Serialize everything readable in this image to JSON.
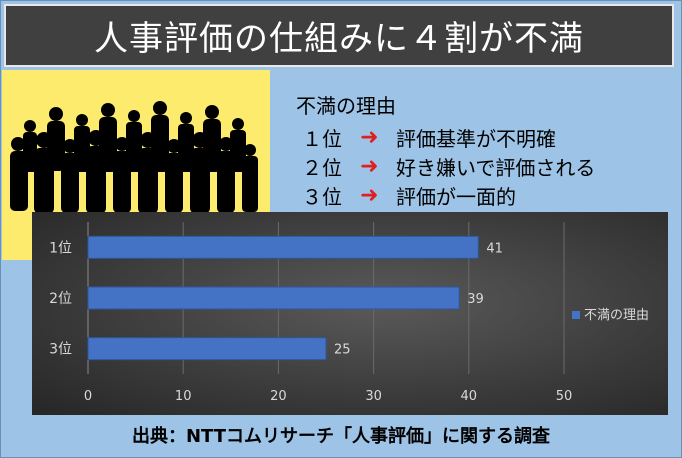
{
  "title": "人事評価の仕組みに４割が不満",
  "reasons": {
    "heading": "不満の理由",
    "items": [
      {
        "rank": "１位",
        "text": "評価基準が不明確"
      },
      {
        "rank": "２位",
        "text": "好き嫌いで評価される"
      },
      {
        "rank": "３位",
        "text": "評価が一面的"
      }
    ],
    "arrow_color": "#e02020"
  },
  "chart_data": {
    "type": "bar",
    "orientation": "horizontal",
    "categories": [
      "1位",
      "2位",
      "3位"
    ],
    "series": [
      {
        "name": "不満の理由",
        "values": [
          41,
          39,
          25
        ],
        "color": "#4472c4"
      }
    ],
    "xlim": [
      0,
      50
    ],
    "xticks": [
      0,
      10,
      20,
      30,
      40,
      50
    ],
    "grid": true,
    "legend": "right",
    "data_labels": true
  },
  "source": "出典：NTTコムリサーチ「人事評価」に関する調査"
}
